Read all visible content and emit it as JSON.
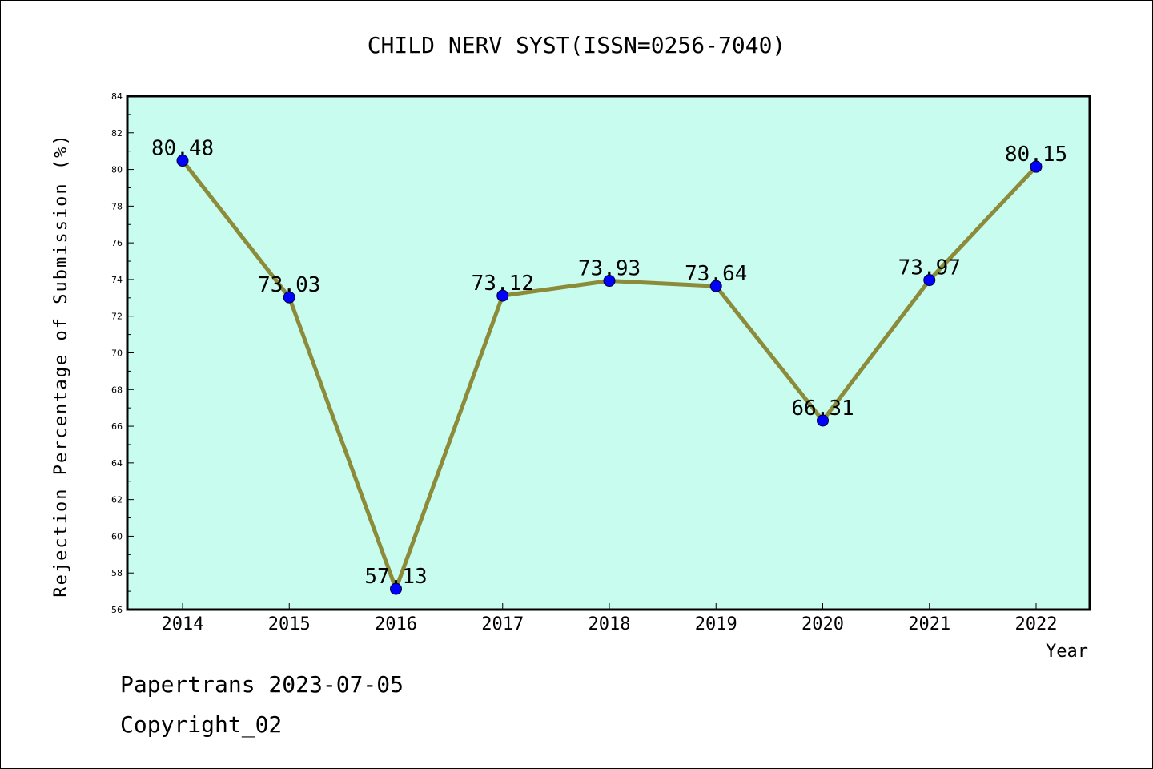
{
  "chart_data": {
    "type": "line",
    "title": "CHILD NERV SYST(ISSN=0256-7040)",
    "xlabel": "Year",
    "ylabel": "Rejection Percentage of Submission (%)",
    "categories": [
      "2014",
      "2015",
      "2016",
      "2017",
      "2018",
      "2019",
      "2020",
      "2021",
      "2022"
    ],
    "values": [
      80.48,
      73.03,
      57.13,
      73.12,
      73.93,
      73.64,
      66.31,
      73.97,
      80.15
    ],
    "data_labels": [
      "80.48",
      "73.03",
      "57.13",
      "73.12",
      "73.93",
      "73.64",
      "66.31",
      "73.97",
      "80.15"
    ],
    "ylim": [
      56,
      84
    ],
    "yticks": [
      "56",
      "58",
      "60",
      "62",
      "64",
      "66",
      "68",
      "70",
      "72",
      "74",
      "76",
      "78",
      "80",
      "82",
      "84"
    ],
    "grid": false,
    "legend": "none",
    "colors": {
      "plot_background": "#c8fcee",
      "line": "#8b8b3a",
      "marker": "#0000ff"
    }
  },
  "footer": {
    "line1": "Papertrans 2023-07-05",
    "line2": "Copyright_02"
  }
}
